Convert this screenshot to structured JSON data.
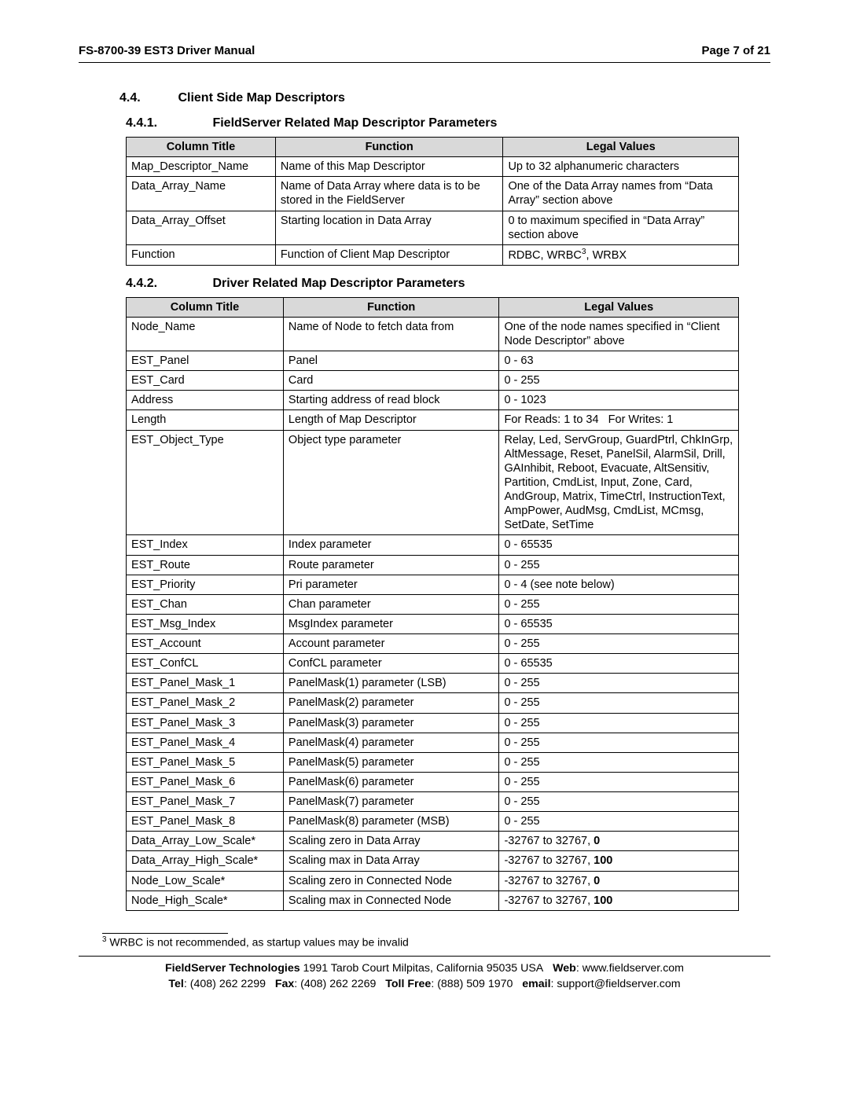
{
  "header": {
    "left": "FS-8700-39 EST3 Driver Manual",
    "right": "Page 7 of 21"
  },
  "section": {
    "num": "4.4.",
    "title": "Client Side Map Descriptors"
  },
  "sub1": {
    "num": "4.4.1.",
    "title": "FieldServer Related Map Descriptor Parameters",
    "headers": [
      "Column Title",
      "Function",
      "Legal Values"
    ],
    "rows": [
      [
        "Map_Descriptor_Name",
        "Name of this Map Descriptor",
        "Up to 32 alphanumeric characters"
      ],
      [
        "Data_Array_Name",
        "Name of Data Array where data is to be stored in the FieldServer",
        "One of the Data Array names from “Data Array” section above"
      ],
      [
        "Data_Array_Offset",
        "Starting location in Data Array",
        "0 to maximum specified in “Data Array” section above"
      ],
      [
        "Function",
        "Function of Client Map Descriptor",
        "RDBC, WRBC<sup>3</sup>, WRBX"
      ]
    ]
  },
  "sub2": {
    "num": "4.4.2.",
    "title": "Driver Related Map Descriptor Parameters",
    "headers": [
      "Column Title",
      "Function",
      "Legal Values"
    ],
    "rows": [
      [
        "Node_Name",
        "Name of Node to fetch data from",
        "One of the node names specified in “Client Node Descriptor” above"
      ],
      [
        "EST_Panel",
        "Panel",
        "0 - 63"
      ],
      [
        "EST_Card",
        "Card",
        "0 - 255"
      ],
      [
        "Address",
        "Starting address of read block",
        "0 - 1023"
      ],
      [
        "Length",
        "Length of Map Descriptor",
        "For Reads: 1 to 34&nbsp;&nbsp;&nbsp;For Writes: 1"
      ],
      [
        "EST_Object_Type",
        "Object type parameter",
        "Relay, Led, ServGroup, GuardPtrl, ChkInGrp, AltMessage, Reset, PanelSil, AlarmSil, Drill, GAInhibit, Reboot, Evacuate, AltSensitiv, Partition, CmdList, Input, Zone, Card, AndGroup, Matrix, TimeCtrl, InstructionText, AmpPower, AudMsg, CmdList, MCmsg, SetDate, SetTime"
      ],
      [
        "EST_Index",
        "Index parameter",
        "0 - 65535"
      ],
      [
        "EST_Route",
        "Route parameter",
        "0 - 255"
      ],
      [
        "EST_Priority",
        "Pri parameter",
        "0 - 4 (see note below)"
      ],
      [
        "EST_Chan",
        "Chan parameter",
        "0 - 255"
      ],
      [
        "EST_Msg_Index",
        "MsgIndex parameter",
        "0 - 65535"
      ],
      [
        "EST_Account",
        "Account parameter",
        "0 - 255"
      ],
      [
        "EST_ConfCL",
        "ConfCL parameter",
        "0 - 65535"
      ],
      [
        "EST_Panel_Mask_1",
        "PanelMask(1) parameter (LSB)",
        "0 - 255"
      ],
      [
        "EST_Panel_Mask_2",
        "PanelMask(2) parameter",
        "0 - 255"
      ],
      [
        "EST_Panel_Mask_3",
        "PanelMask(3) parameter",
        "0 - 255"
      ],
      [
        "EST_Panel_Mask_4",
        "PanelMask(4) parameter",
        "0 - 255"
      ],
      [
        "EST_Panel_Mask_5",
        "PanelMask(5) parameter",
        "0 - 255"
      ],
      [
        "EST_Panel_Mask_6",
        "PanelMask(6) parameter",
        "0 - 255"
      ],
      [
        "EST_Panel_Mask_7",
        "PanelMask(7) parameter",
        "0 - 255"
      ],
      [
        "EST_Panel_Mask_8",
        "PanelMask(8) parameter (MSB)",
        "0 - 255"
      ],
      [
        "Data_Array_Low_Scale*",
        "Scaling zero in Data Array",
        "-32767 to 32767, <b>0</b>"
      ],
      [
        "Data_Array_High_Scale*",
        "Scaling max in Data Array",
        "-32767 to 32767, <b>100</b>"
      ],
      [
        "Node_Low_Scale*",
        "Scaling zero in Connected Node",
        "-32767 to 32767, <b>0</b>"
      ],
      [
        "Node_High_Scale*",
        "Scaling max in Connected Node",
        "-32767 to 32767, <b>100</b>"
      ]
    ]
  },
  "footnote": "<sup>3</sup> WRBC is not recommended, as startup values may be invalid",
  "footer": {
    "line1": "<b>FieldServer Technologies</b> 1991 Tarob Court Milpitas, California 95035 USA&nbsp;&nbsp;&nbsp;<b>Web</b>: www.fieldserver.com",
    "line2": "<b>Tel</b>: (408) 262 2299&nbsp;&nbsp;&nbsp;<b>Fax</b>: (408) 262 2269&nbsp;&nbsp;&nbsp;<b>Toll Free</b>: (888) 509 1970&nbsp;&nbsp;&nbsp;<b>email</b>: support@fieldserver.com"
  }
}
